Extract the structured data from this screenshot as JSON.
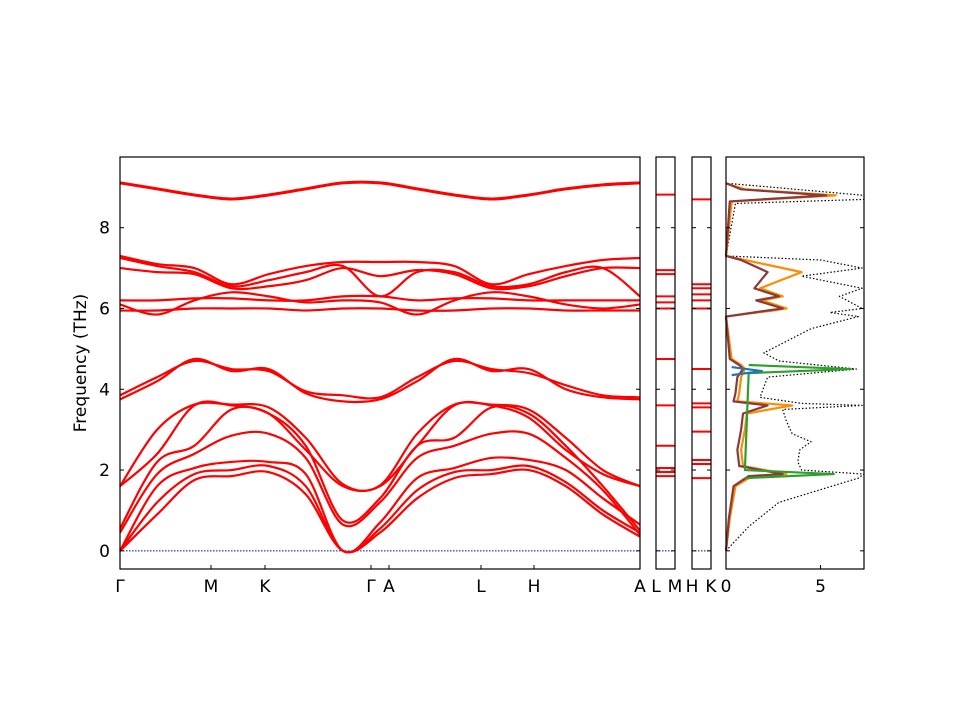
{
  "chart_data": [
    {
      "type": "line",
      "panel": "band structure",
      "ylabel": "Frequency (THz)",
      "ylim": [
        -0.45,
        9.75
      ],
      "yticks": [
        0,
        2,
        4,
        6,
        8
      ],
      "xticks": [
        "Γ",
        "M",
        "K",
        "Γ",
        "A",
        "L",
        "H",
        "A"
      ],
      "x": [
        0,
        0.5,
        1,
        1.5,
        2,
        2.5,
        3,
        3.5,
        4,
        4.5,
        5,
        5.5,
        6,
        6.5,
        7
      ],
      "line_color": "#ff0000",
      "zero_line_color": "#0000cc",
      "bands": [
        [
          0,
          0.9,
          1.75,
          1.85,
          1.95,
          1.4,
          0,
          0.45,
          1.3,
          1.8,
          1.9,
          2.0,
          1.6,
          0.9,
          0.35
        ],
        [
          0,
          1.2,
          1.9,
          2.0,
          2.1,
          1.6,
          0,
          0.55,
          1.5,
          1.95,
          2.0,
          2.1,
          1.7,
          1.0,
          0.45
        ],
        [
          0,
          1.6,
          2.05,
          2.2,
          2.2,
          1.9,
          0,
          0.7,
          1.8,
          2.05,
          2.3,
          2.25,
          2.0,
          1.3,
          0.65
        ],
        [
          0.45,
          1.9,
          2.4,
          2.85,
          2.9,
          2.3,
          0.65,
          1.2,
          2.3,
          2.6,
          2.9,
          2.9,
          2.3,
          1.5,
          0.4
        ],
        [
          0.55,
          2.2,
          2.6,
          3.5,
          3.4,
          2.6,
          0.75,
          1.3,
          2.6,
          2.8,
          3.55,
          3.4,
          2.6,
          1.6,
          0.5
        ],
        [
          1.6,
          2.4,
          3.6,
          3.6,
          3.4,
          2.5,
          1.6,
          1.6,
          2.6,
          3.6,
          3.6,
          3.3,
          2.5,
          1.9,
          1.6
        ],
        [
          1.6,
          3.0,
          3.62,
          3.62,
          3.55,
          2.8,
          1.65,
          1.62,
          2.9,
          3.62,
          3.62,
          3.5,
          2.8,
          2.0,
          1.6
        ],
        [
          3.75,
          4.2,
          4.75,
          4.45,
          4.5,
          3.9,
          3.7,
          3.75,
          4.2,
          4.75,
          4.45,
          4.5,
          4.0,
          3.8,
          3.75
        ],
        [
          3.85,
          4.3,
          4.7,
          4.5,
          4.45,
          3.95,
          3.85,
          3.8,
          4.3,
          4.7,
          4.5,
          4.4,
          4.1,
          3.85,
          3.8
        ],
        [
          5.95,
          5.95,
          6.0,
          6.0,
          6.0,
          5.95,
          6.0,
          6.0,
          5.95,
          5.95,
          6.0,
          6.0,
          5.95,
          5.95,
          5.95
        ],
        [
          6.1,
          5.85,
          6.2,
          6.4,
          6.3,
          6.15,
          6.2,
          6.15,
          5.85,
          6.2,
          6.4,
          6.3,
          6.1,
          6.0,
          6.1
        ],
        [
          6.2,
          6.2,
          6.25,
          6.25,
          6.2,
          6.2,
          6.3,
          6.3,
          6.2,
          6.25,
          6.25,
          6.2,
          6.2,
          6.2,
          6.2
        ],
        [
          7.25,
          7.05,
          6.9,
          6.55,
          6.7,
          6.9,
          7.05,
          6.3,
          6.9,
          6.9,
          6.55,
          6.6,
          6.9,
          7.0,
          6.3
        ],
        [
          7.3,
          7.1,
          7.0,
          6.6,
          6.85,
          7.05,
          7.15,
          7.15,
          7.15,
          7.05,
          6.6,
          6.85,
          7.05,
          7.2,
          7.25
        ],
        [
          7.0,
          6.9,
          6.85,
          6.5,
          6.55,
          6.7,
          7.0,
          6.8,
          6.95,
          6.85,
          6.5,
          6.55,
          6.8,
          7.0,
          7.0
        ],
        [
          9.1,
          8.95,
          8.8,
          8.7,
          8.8,
          8.95,
          9.1,
          9.1,
          8.95,
          8.8,
          8.7,
          8.8,
          8.95,
          9.05,
          9.1
        ],
        [
          9.12,
          8.97,
          8.82,
          8.72,
          8.82,
          8.97,
          9.12,
          9.12,
          8.97,
          8.82,
          8.72,
          8.82,
          8.97,
          9.07,
          9.12
        ]
      ]
    },
    {
      "type": "line",
      "panel": "L–M segment",
      "xticks": [
        "L",
        "M"
      ],
      "levels": [
        0,
        1.85,
        1.95,
        2.05,
        2.6,
        3.6,
        4.75,
        6.0,
        6.15,
        6.3,
        6.85,
        6.95,
        8.82
      ]
    },
    {
      "type": "line",
      "panel": "H–K segment",
      "xticks": [
        "H",
        "K"
      ],
      "levels": [
        0,
        1.8,
        2.15,
        2.25,
        2.95,
        3.55,
        3.65,
        4.5,
        6.0,
        6.2,
        6.35,
        6.5,
        6.6,
        8.7
      ]
    },
    {
      "type": "line",
      "panel": "density of states",
      "xticks": [
        "0",
        "5"
      ],
      "xlim": [
        0,
        7.3
      ],
      "series": [
        {
          "color": "#8b3a3a",
          "y": [
            0,
            0.8,
            1.6,
            1.85,
            1.9,
            2.1,
            2.5,
            3.0,
            3.4,
            3.6,
            3.7,
            3.9,
            4.3,
            4.5,
            4.6,
            4.75,
            5.8,
            5.95,
            6.0,
            6.2,
            6.3,
            6.5,
            6.9,
            7.2,
            7.3,
            8.65,
            8.8,
            8.95,
            9.1
          ],
          "x": [
            0,
            0.15,
            0.4,
            1.2,
            3.0,
            0.7,
            0.6,
            0.8,
            0.9,
            2.2,
            0.4,
            0.5,
            0.6,
            0.9,
            0.7,
            0.2,
            0,
            2.2,
            3.0,
            1.6,
            2.8,
            1.5,
            2.2,
            0.8,
            0,
            0.2,
            5.3,
            0.8,
            0
          ]
        },
        {
          "color": "#ff8c00",
          "y": [
            0,
            0.8,
            1.6,
            1.85,
            1.9,
            2.1,
            2.5,
            3.0,
            3.4,
            3.6,
            3.7,
            3.9,
            4.3,
            4.5,
            4.6,
            4.75,
            5.8,
            5.95,
            6.0,
            6.2,
            6.3,
            6.5,
            6.9,
            7.2,
            7.3,
            8.65,
            8.8,
            8.95,
            9.1
          ],
          "x": [
            0,
            0.2,
            0.5,
            1.4,
            3.2,
            0.9,
            0.8,
            1.0,
            1.1,
            3.5,
            0.6,
            0.7,
            0.8,
            1.0,
            0.8,
            0.3,
            0,
            2.5,
            3.2,
            1.9,
            3.0,
            1.8,
            4.0,
            1.0,
            0,
            0.3,
            5.8,
            1.0,
            0
          ]
        },
        {
          "color": "#2ca02c",
          "y": [
            1.8,
            1.9,
            2.0,
            4.4,
            4.5,
            4.6
          ],
          "x": [
            1.0,
            5.7,
            1.0,
            1.2,
            6.6,
            1.2
          ]
        },
        {
          "color": "#1f77b4",
          "y": [
            4.35,
            4.45,
            4.55
          ],
          "x": [
            0.3,
            1.9,
            0.3
          ]
        },
        {
          "color": "#000000",
          "style": "dotted",
          "y": [
            0,
            0.6,
            1.2,
            1.8,
            1.9,
            2.0,
            2.2,
            2.5,
            2.7,
            2.9,
            3.2,
            3.5,
            3.6,
            3.65,
            3.8,
            4.3,
            4.5,
            4.7,
            4.9,
            5.5,
            5.8,
            5.9,
            6.0,
            6.3,
            6.5,
            6.8,
            7.0,
            7.2,
            7.3,
            8.6,
            8.7,
            8.8,
            9.0,
            9.1
          ],
          "x": [
            0,
            1.2,
            2.8,
            7.0,
            7.3,
            4.0,
            3.8,
            3.9,
            4.5,
            3.5,
            3.2,
            3.0,
            7.2,
            4.0,
            1.8,
            2.2,
            6.9,
            2.8,
            2.0,
            4.5,
            7.0,
            5.5,
            7.2,
            6.0,
            7.2,
            4.0,
            7.2,
            5.0,
            0,
            0.5,
            7.3,
            7.3,
            2.5,
            0
          ]
        }
      ]
    }
  ]
}
